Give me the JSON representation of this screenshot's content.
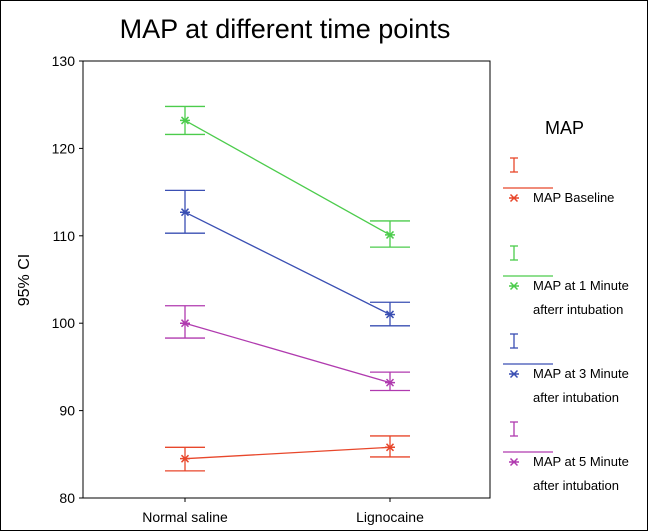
{
  "chart_data": {
    "type": "line",
    "title": "MAP at different time points",
    "ylabel": "95% CI",
    "xlabel": "",
    "categories": [
      "Normal saline",
      "Lignocaine"
    ],
    "ylim": [
      80,
      130
    ],
    "yticks": [
      80,
      90,
      100,
      110,
      120,
      130
    ],
    "grid": false,
    "legend_title": "MAP",
    "legend_position": "right",
    "series": [
      {
        "name": "MAP Baseline",
        "legend_lines": [
          "MAP Baseline"
        ],
        "color": "#e8472b",
        "means": [
          84.5,
          85.8
        ],
        "ci_low": [
          83.1,
          84.7
        ],
        "ci_high": [
          85.8,
          87.1
        ]
      },
      {
        "name": "MAP at 1 Minute afterr intubation",
        "legend_lines": [
          "MAP at 1 Minute",
          "afterr intubation"
        ],
        "color": "#4ccc4c",
        "means": [
          123.2,
          110.1
        ],
        "ci_low": [
          121.6,
          108.7
        ],
        "ci_high": [
          124.8,
          111.7
        ]
      },
      {
        "name": "MAP at 3 Minute after intubation",
        "legend_lines": [
          "MAP at 3 Minute",
          "after intubation"
        ],
        "color": "#3a4fb3",
        "means": [
          112.7,
          101.0
        ],
        "ci_low": [
          110.3,
          99.7
        ],
        "ci_high": [
          115.2,
          102.4
        ]
      },
      {
        "name": "MAP at 5 Minute after intubation",
        "legend_lines": [
          "MAP at 5 Minute",
          "after intubation"
        ],
        "color": "#b03aaf",
        "means": [
          100.0,
          93.2
        ],
        "ci_low": [
          98.3,
          92.3
        ],
        "ci_high": [
          102.0,
          94.4
        ]
      }
    ]
  }
}
